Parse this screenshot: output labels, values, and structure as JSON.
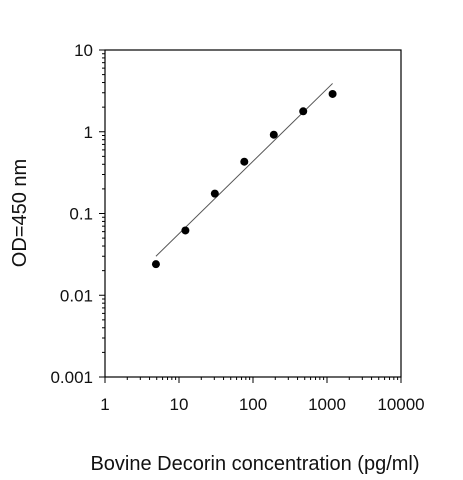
{
  "chart_data": {
    "type": "scatter",
    "title": "",
    "xlabel": "Bovine Decorin concentration (pg/ml)",
    "ylabel": "OD=450 nm",
    "x_scale": "log",
    "y_scale": "log",
    "xlim": [
      1,
      10000
    ],
    "ylim": [
      0.001,
      10
    ],
    "x_ticks": [
      1,
      10,
      100,
      1000,
      10000
    ],
    "x_tick_labels": [
      "1",
      "10",
      "100",
      "1000",
      "10000"
    ],
    "y_ticks": [
      0.001,
      0.01,
      0.1,
      1,
      10
    ],
    "y_tick_labels": [
      "0.001",
      "0.01",
      "0.1",
      "1",
      "10"
    ],
    "grid": false,
    "legend": "none",
    "series": [
      {
        "marker": "circle",
        "color": "#000000",
        "x": [
          4.88,
          12.2,
          30.5,
          76.3,
          191,
          477,
          1190
        ],
        "y": [
          0.024,
          0.062,
          0.175,
          0.43,
          0.92,
          1.78,
          2.9
        ]
      }
    ],
    "trendline": {
      "color": "#555555",
      "x": [
        4.88,
        1190
      ],
      "y": [
        0.03,
        3.9
      ]
    }
  }
}
